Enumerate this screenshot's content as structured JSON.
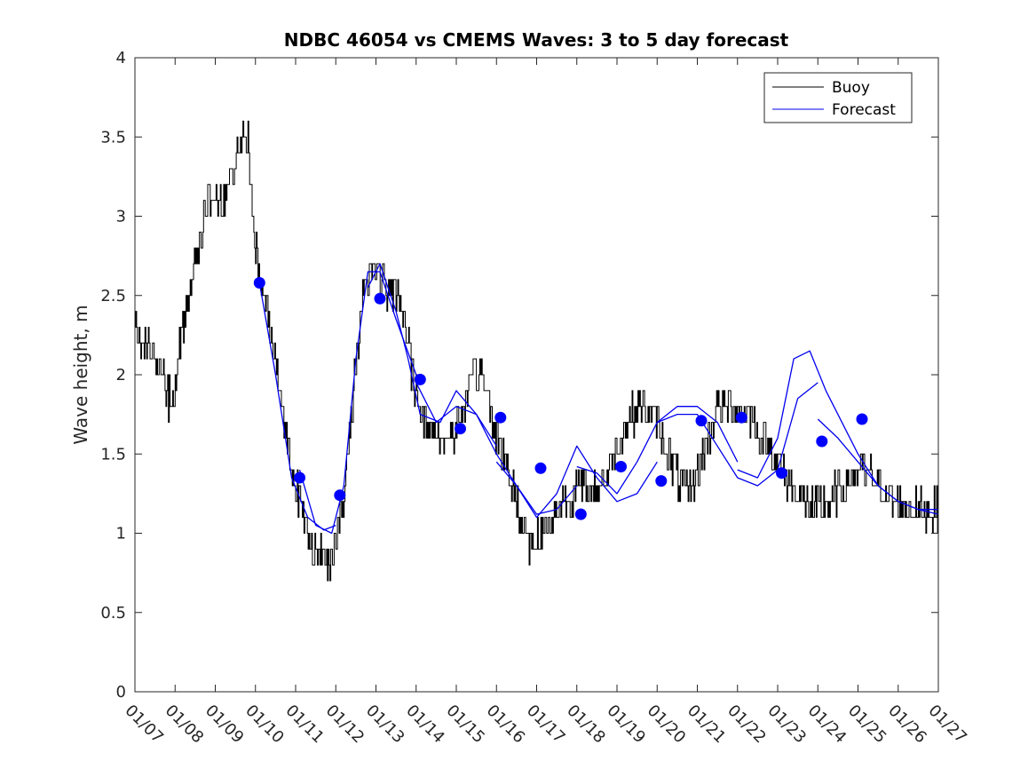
{
  "chart_data": {
    "type": "line",
    "title": "NDBC 46054 vs CMEMS Waves: 3 to 5 day forecast",
    "xlabel": "",
    "ylabel": "Wave height, m",
    "xlim": [
      0,
      20
    ],
    "ylim": [
      0,
      4
    ],
    "x_tick_labels": [
      "01/07",
      "01/08",
      "01/09",
      "01/10",
      "01/11",
      "01/12",
      "01/13",
      "01/14",
      "01/15",
      "01/16",
      "01/17",
      "01/18",
      "01/19",
      "01/20",
      "01/21",
      "01/22",
      "01/23",
      "01/24",
      "01/25",
      "01/26",
      "01/27"
    ],
    "y_ticks": [
      0,
      0.5,
      1,
      1.5,
      2,
      2.5,
      3,
      3.5,
      4
    ],
    "y_tick_labels": [
      "0",
      "0.5",
      "1",
      "1.5",
      "2",
      "2.5",
      "3",
      "3.5",
      "4"
    ],
    "legend": [
      "Buoy",
      "Forecast"
    ],
    "legend_location": "top-right",
    "colors": {
      "buoy": "#000000",
      "forecast": "#0000ee",
      "marker": "#0000ff",
      "axis": "#262626"
    },
    "series": [
      {
        "name": "Buoy",
        "noise": 0.12,
        "x": [
          0,
          0.2,
          0.5,
          0.7,
          0.9,
          1.2,
          1.5,
          1.8,
          2.2,
          2.5,
          2.8,
          3.0,
          3.3,
          3.6,
          3.9,
          4.2,
          4.5,
          4.9,
          5.2,
          5.4,
          5.7,
          6.0,
          6.3,
          6.6,
          6.9,
          7.3,
          7.7,
          8.0,
          8.3,
          8.6,
          8.9,
          9.2,
          9.5,
          9.8,
          10.2,
          10.6,
          10.9,
          11.1,
          11.4,
          11.7,
          12.0,
          12.3,
          12.6,
          12.9,
          13.2,
          13.5,
          13.8,
          14.2,
          14.5,
          14.9,
          15.3,
          15.6,
          15.9,
          16.2,
          16.5,
          16.9,
          17.3,
          17.6,
          18.0,
          18.4,
          18.8,
          19.1,
          19.4,
          19.7,
          20.0
        ],
        "y": [
          2.3,
          2.2,
          2.1,
          2.0,
          1.8,
          2.3,
          2.7,
          3.1,
          3.1,
          3.4,
          3.5,
          2.8,
          2.4,
          1.9,
          1.4,
          1.1,
          0.85,
          0.85,
          1.2,
          1.8,
          2.6,
          2.7,
          2.5,
          2.5,
          2.0,
          1.65,
          1.6,
          1.65,
          1.9,
          2.05,
          1.7,
          1.45,
          1.2,
          0.95,
          1.0,
          1.2,
          1.25,
          1.3,
          1.25,
          1.35,
          1.55,
          1.75,
          1.8,
          1.75,
          1.55,
          1.35,
          1.25,
          1.55,
          1.8,
          1.8,
          1.75,
          1.6,
          1.5,
          1.35,
          1.25,
          1.15,
          1.2,
          1.3,
          1.4,
          1.35,
          1.2,
          1.15,
          1.15,
          1.15,
          1.15
        ]
      },
      {
        "name": "Forecast",
        "segments": [
          {
            "x": [
              3.1,
              3.5,
              3.9,
              4.3,
              4.7,
              5.0
            ],
            "y": [
              2.58,
              2.0,
              1.35,
              1.1,
              1.02,
              1.05
            ]
          },
          {
            "x": [
              4.1,
              4.5,
              4.9,
              5.2,
              5.5,
              5.8,
              6.1,
              6.5,
              7.0
            ],
            "y": [
              1.4,
              1.05,
              1.0,
              1.3,
              2.1,
              2.65,
              2.65,
              2.35,
              2.0
            ]
          },
          {
            "x": [
              5.8,
              6.1,
              6.5,
              6.8,
              7.1,
              7.6,
              8.0,
              8.5,
              9.0
            ],
            "y": [
              2.55,
              2.7,
              2.4,
              2.1,
              1.75,
              1.7,
              1.9,
              1.75,
              1.55
            ]
          },
          {
            "x": [
              7.0,
              7.5,
              8.0,
              8.5,
              9.0,
              9.5,
              10.0,
              10.5,
              11.0
            ],
            "y": [
              1.95,
              1.7,
              1.8,
              1.75,
              1.5,
              1.3,
              1.12,
              1.15,
              1.3
            ]
          },
          {
            "x": [
              9.0,
              9.5,
              10.0,
              10.5,
              11.0,
              11.5,
              12.0,
              12.5,
              13.0
            ],
            "y": [
              1.45,
              1.3,
              1.1,
              1.25,
              1.55,
              1.35,
              1.2,
              1.25,
              1.45
            ]
          },
          {
            "x": [
              11.0,
              11.5,
              12.0,
              12.5,
              13.0,
              13.5,
              14.0,
              14.5,
              15.0
            ],
            "y": [
              1.42,
              1.38,
              1.25,
              1.45,
              1.7,
              1.8,
              1.8,
              1.7,
              1.45
            ]
          },
          {
            "x": [
              13.0,
              13.5,
              14.0,
              14.5,
              15.0,
              15.5,
              16.0,
              16.5,
              17.0
            ],
            "y": [
              1.7,
              1.75,
              1.75,
              1.55,
              1.35,
              1.3,
              1.4,
              1.85,
              1.95
            ]
          },
          {
            "x": [
              15.0,
              15.5,
              16.0,
              16.4,
              16.8,
              17.2,
              17.6,
              18.0,
              18.5,
              19.0,
              19.5,
              20.0
            ],
            "y": [
              1.4,
              1.35,
              1.6,
              2.1,
              2.15,
              1.9,
              1.7,
              1.5,
              1.3,
              1.2,
              1.15,
              1.12
            ]
          },
          {
            "x": [
              17.0,
              17.5,
              18.0,
              18.5,
              19.0,
              19.5,
              20.0
            ],
            "y": [
              1.72,
              1.6,
              1.45,
              1.3,
              1.2,
              1.15,
              1.15
            ]
          }
        ]
      },
      {
        "name": "Forecast markers",
        "x": [
          3.1,
          4.1,
          5.1,
          6.1,
          7.1,
          8.1,
          9.1,
          10.1,
          11.1,
          12.1,
          13.1,
          14.1,
          15.1,
          16.1,
          17.1,
          18.1
        ],
        "y": [
          2.58,
          1.35,
          1.24,
          2.48,
          1.97,
          1.66,
          1.73,
          1.41,
          1.12,
          1.42,
          1.33,
          1.71,
          1.73,
          1.38,
          1.58,
          1.72
        ]
      }
    ]
  }
}
